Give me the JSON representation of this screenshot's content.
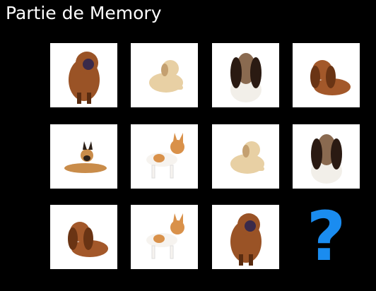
{
  "title": "Partie de Memory",
  "cards": [
    {
      "state": "revealed",
      "dog": "chow-chow",
      "fur": "#9a5326",
      "dark": "#5a2c10"
    },
    {
      "state": "revealed",
      "dog": "golden-puppy",
      "fur": "#e8d0a4",
      "dark": "#c4a070"
    },
    {
      "state": "revealed",
      "dog": "basset-hound",
      "fur": "#f2efe9",
      "dark": "#2a1a12"
    },
    {
      "state": "revealed",
      "dog": "cocker-spaniel",
      "fur": "#a3582a",
      "dark": "#6a3414"
    },
    {
      "state": "revealed",
      "dog": "malinois",
      "fur": "#c98c4a",
      "dark": "#2c2018"
    },
    {
      "state": "revealed",
      "dog": "chihuahua",
      "fur": "#f6f3ef",
      "dark": "#d9914a"
    },
    {
      "state": "revealed",
      "dog": "golden-puppy",
      "fur": "#e8d0a4",
      "dark": "#c4a070"
    },
    {
      "state": "revealed",
      "dog": "basset-hound",
      "fur": "#f2efe9",
      "dark": "#2a1a12"
    },
    {
      "state": "revealed",
      "dog": "cocker-spaniel",
      "fur": "#a3582a",
      "dark": "#6a3414"
    },
    {
      "state": "revealed",
      "dog": "chihuahua",
      "fur": "#f6f3ef",
      "dark": "#d9914a"
    },
    {
      "state": "revealed",
      "dog": "chow-chow",
      "fur": "#9a5326",
      "dark": "#5a2c10"
    },
    {
      "state": "hidden",
      "dog": "",
      "symbol": "?",
      "color": "#1a8cf0"
    }
  ]
}
